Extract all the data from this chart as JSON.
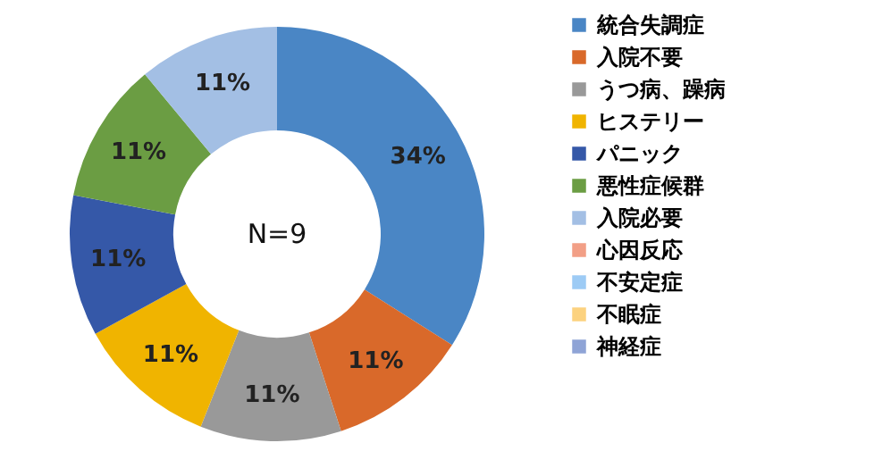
{
  "chart_data": {
    "type": "donut",
    "categories": [
      "統合失調症",
      "入院不要",
      "うつ病、躁病",
      "ヒステリー",
      "パニック",
      "悪性症候群",
      "入院必要",
      "心因反応",
      "不安定症",
      "不眠症",
      "神経症"
    ],
    "values": [
      34,
      11,
      11,
      11,
      11,
      11,
      11,
      0,
      0,
      0,
      0
    ],
    "colors": [
      "#4a86c5",
      "#d9692a",
      "#999999",
      "#f0b400",
      "#3558a8",
      "#6b9d43",
      "#a3bfe4",
      "#f29f86",
      "#9dcbf5",
      "#fcd27f",
      "#8fa4d6"
    ],
    "value_labels": [
      "34%",
      "11%",
      "11%",
      "11%",
      "11%",
      "11%",
      "11%",
      null,
      null,
      null,
      null
    ],
    "annotations": [
      "N=9"
    ],
    "legend": "right"
  }
}
